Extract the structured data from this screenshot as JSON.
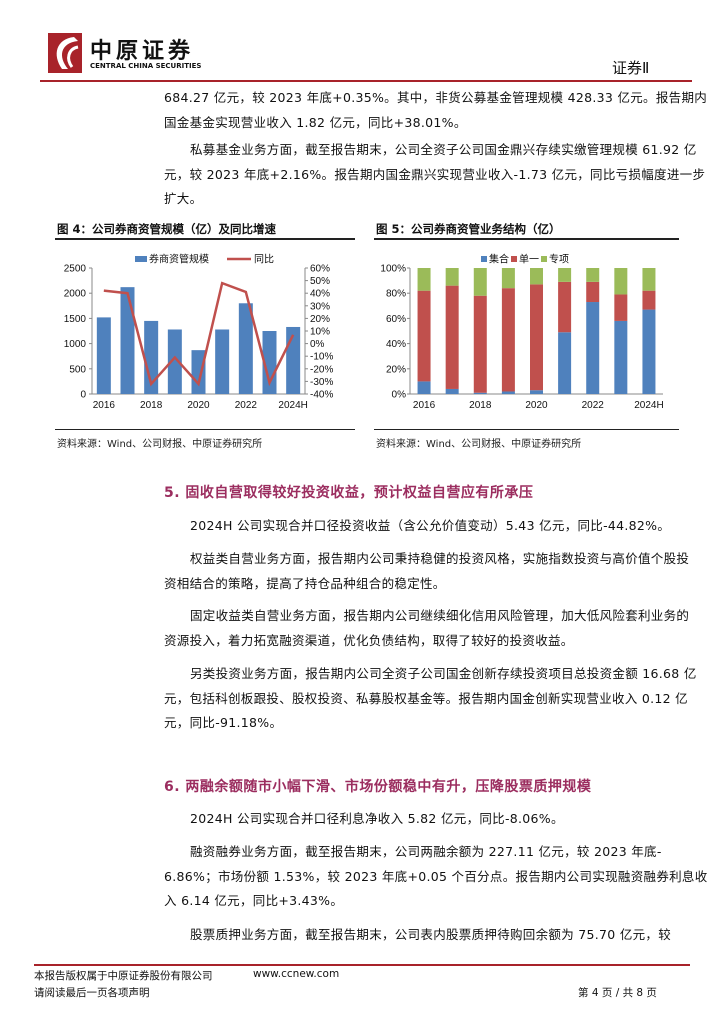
{
  "header": {
    "logo_cn": "中原证券",
    "logo_en": "CENTRAL CHINA SECURITIES",
    "section": "证券Ⅱ",
    "accent_color": "#a8232a"
  },
  "intro": [
    [
      "684.27 亿元，较 2023 年底+0.35%。其中，非货公募基金管理规模 428.33 亿元。报告期内",
      "国金基金实现营业收入 1.82 亿元，同比+38.01%。"
    ],
    [
      "私募基金业务方面，截至报告期末，公司全资子公司国金鼎兴存续实缴管理规模 61.92 亿",
      "元，较 2023 年底+2.16%。报告期内国金鼎兴实现营业收入-1.73 亿元，同比亏损幅度进一步",
      "扩大。"
    ]
  ],
  "fig4": {
    "title": "图 4：公司券商资管规模（亿）及同比增速",
    "source": "资料来源：Wind、公司财报、中原证券研究所"
  },
  "fig5": {
    "title": "图 5：公司券商资管业务结构（亿）",
    "source": "资料来源：Wind、公司财报、中原证券研究所"
  },
  "chart_data": [
    {
      "type": "bar+line",
      "categories": [
        "2016",
        "2017",
        "2018",
        "2019",
        "2020",
        "2021",
        "2022",
        "2023",
        "2024H"
      ],
      "tick_labels": [
        "2016",
        "2018",
        "2020",
        "2022",
        "2024H"
      ],
      "series": [
        {
          "name": "券商资管规模",
          "type": "bar",
          "axis": "left",
          "color": "#4f81bd",
          "values": [
            1520,
            2120,
            1450,
            1280,
            870,
            1280,
            1800,
            1250,
            1330
          ]
        },
        {
          "name": "同比",
          "type": "line",
          "axis": "right",
          "color": "#c0504d",
          "values": [
            42,
            40,
            -32,
            -11,
            -32,
            48,
            41,
            -31,
            7
          ]
        }
      ],
      "ylim_left": [
        0,
        2500
      ],
      "yticks_left": [
        "0",
        "500",
        "1000",
        "1500",
        "2000",
        "2500"
      ],
      "ylim_right": [
        -40,
        60
      ],
      "yticks_right": [
        "-40%",
        "-30%",
        "-20%",
        "-10%",
        "0%",
        "10%",
        "20%",
        "30%",
        "40%",
        "50%",
        "60%"
      ],
      "legend": "top"
    },
    {
      "type": "stacked-bar-100",
      "categories": [
        "2016",
        "2017",
        "2018",
        "2019",
        "2020",
        "2021",
        "2022",
        "2023",
        "2024H"
      ],
      "tick_labels": [
        "2016",
        "2018",
        "2020",
        "2022",
        "2024H"
      ],
      "series": [
        {
          "name": "集合",
          "color": "#4f81bd",
          "values": [
            10,
            4,
            1,
            2,
            3,
            49,
            73,
            58,
            67
          ]
        },
        {
          "name": "单一",
          "color": "#c0504d",
          "values": [
            72,
            82,
            77,
            82,
            84,
            40,
            16,
            21,
            15
          ]
        },
        {
          "name": "专项",
          "color": "#9bbb59",
          "values": [
            18,
            14,
            22,
            16,
            13,
            11,
            11,
            21,
            18
          ]
        }
      ],
      "ylim": [
        0,
        100
      ],
      "yticks": [
        "0%",
        "20%",
        "40%",
        "60%",
        "80%",
        "100%"
      ],
      "legend": "top"
    }
  ],
  "sec5": {
    "heading": "5. 固收自营取得较好投资收益，预计权益自营应有所承压",
    "paras": [
      [
        "2024H 公司实现合并口径投资收益（含公允价值变动）5.43 亿元，同比-44.82%。"
      ],
      [
        "权益类自营业务方面，报告期内公司秉持稳健的投资风格，实施指数投资与高价值个股投",
        "资相结合的策略，提高了持仓品种组合的稳定性。"
      ],
      [
        "固定收益类自营业务方面，报告期内公司继续细化信用风险管理，加大低风险套利业务的",
        "资源投入，着力拓宽融资渠道，优化负债结构，取得了较好的投资收益。"
      ],
      [
        "另类投资业务方面，报告期内公司全资子公司国金创新存续投资项目总投资金额 16.68 亿",
        "元，包括科创板跟投、股权投资、私募股权基金等。报告期内国金创新实现营业收入 0.12 亿",
        "元，同比-91.18%。"
      ]
    ]
  },
  "sec6": {
    "heading": "6. 两融余额随市小幅下滑、市场份额稳中有升，压降股票质押规模",
    "paras": [
      [
        "2024H 公司实现合并口径利息净收入 5.82 亿元，同比-8.06%。"
      ],
      [
        "融资融券业务方面，截至报告期末，公司两融余额为 227.11 亿元，较 2023 年底-",
        "6.86%；市场份额 1.53%，较 2023 年底+0.05 个百分点。报告期内公司实现融资融券利息收",
        "入 6.14 亿元，同比+3.43%。"
      ],
      [
        "股票质押业务方面，截至报告期末，公司表内股票质押待购回余额为 75.70 亿元，较"
      ]
    ]
  },
  "footer": {
    "copyright": "本报告版权属于中原证券股份有限公司",
    "website": "www.ccnew.com",
    "disclaimer": "请阅读最后一页各项声明",
    "page": "第 4 页 / 共 8 页"
  }
}
